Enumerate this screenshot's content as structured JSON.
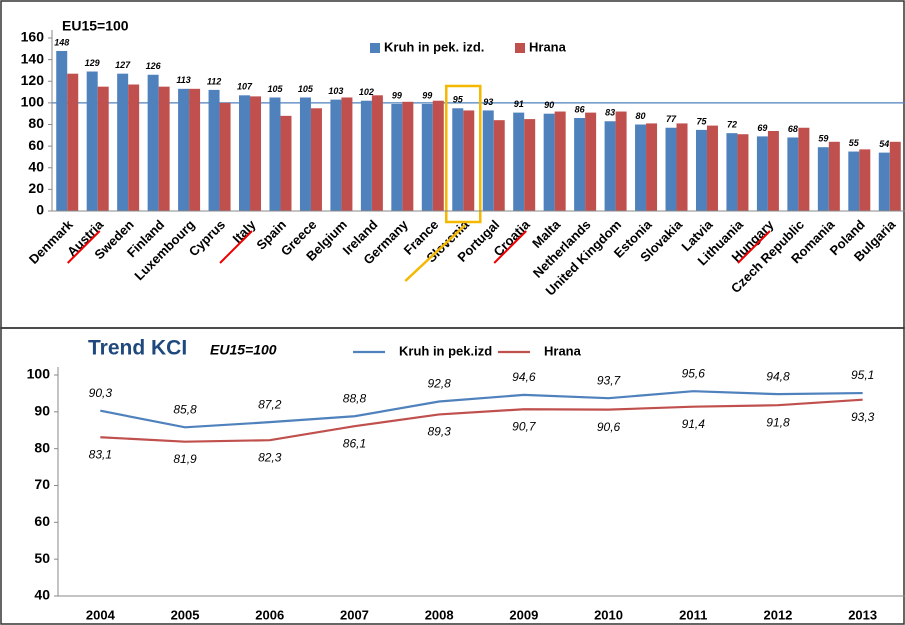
{
  "chart_data": [
    {
      "type": "bar",
      "annotation": "EU15=100",
      "categories": [
        "Denmark",
        "Austria",
        "Sweden",
        "Finland",
        "Luxembourg",
        "Cyprus",
        "Italy",
        "Spain",
        "Greece",
        "Belgium",
        "Ireland",
        "Germany",
        "France",
        "Slovenia",
        "Portugal",
        "Croatia",
        "Malta",
        "Netherlands",
        "United Kingdom",
        "Estonia",
        "Slovakia",
        "Latvia",
        "Lithuania",
        "Hungary",
        "Czech Republic",
        "Romania",
        "Poland",
        "Bulgaria"
      ],
      "series": [
        {
          "name": "Kruh in pek. izd.",
          "color": "#4f81bd",
          "values": [
            148,
            129,
            127,
            126,
            113,
            112,
            107,
            105,
            105,
            103,
            102,
            99,
            99,
            95,
            93,
            91,
            90,
            86,
            83,
            80,
            77,
            75,
            72,
            69,
            68,
            59,
            55,
            54
          ]
        },
        {
          "name": "Hrana",
          "color": "#c0504d",
          "values": [
            127,
            115,
            117,
            115,
            113,
            100,
            106,
            88,
            95,
            105,
            107,
            101,
            102,
            93,
            84,
            85,
            92,
            91,
            92,
            81,
            81,
            79,
            71,
            74,
            77,
            64,
            57,
            64
          ]
        }
      ],
      "ylim": [
        0,
        160
      ],
      "yticks": [
        0,
        20,
        40,
        60,
        80,
        100,
        120,
        140,
        160
      ],
      "reference_line": 100,
      "grid": false
    },
    {
      "type": "line",
      "title": "Trend KCI",
      "subtitle": "EU15=100",
      "categories": [
        "2004",
        "2005",
        "2006",
        "2007",
        "2008",
        "2009",
        "2010",
        "2011",
        "2012",
        "2013"
      ],
      "series": [
        {
          "name": "Kruh in pek.izd",
          "color": "#4f81bd",
          "values": [
            90.3,
            85.8,
            87.2,
            88.8,
            92.8,
            94.6,
            93.7,
            95.6,
            94.8,
            95.1
          ],
          "value_labels": [
            "90,3",
            "85,8",
            "87,2",
            "88,8",
            "92,8",
            "94,6",
            "93,7",
            "95,6",
            "94,8",
            "95,1"
          ]
        },
        {
          "name": "Hrana",
          "color": "#c0504d",
          "values": [
            83.1,
            81.9,
            82.3,
            86.1,
            89.3,
            90.7,
            90.6,
            91.4,
            91.8,
            93.3
          ],
          "value_labels": [
            "83,1",
            "81,9",
            "82,3",
            "86,1",
            "89,3",
            "90,7",
            "90,6",
            "91,4",
            "91,8",
            "93,3"
          ]
        }
      ],
      "ylim": [
        40,
        100
      ],
      "yticks": [
        40,
        50,
        60,
        70,
        80,
        90,
        100
      ],
      "grid": false
    }
  ]
}
